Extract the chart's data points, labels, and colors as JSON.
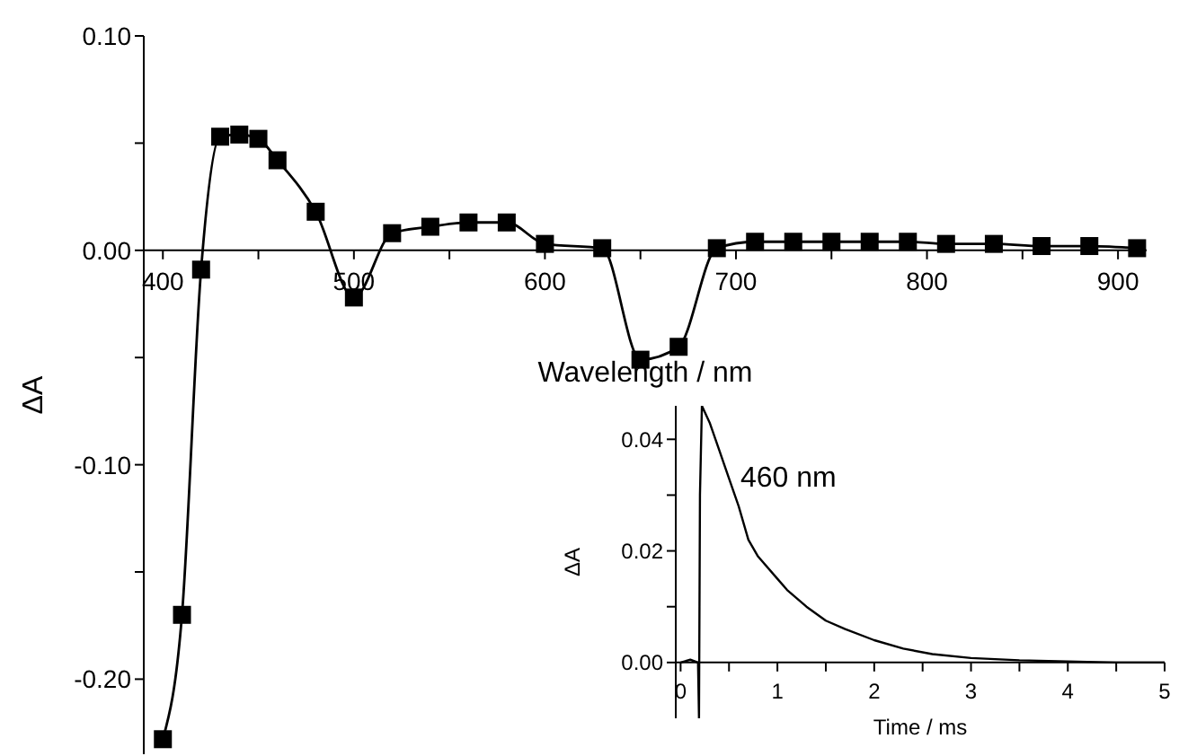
{
  "chart_data": [
    {
      "type": "line",
      "xlabel": "Wavelength / nm",
      "ylabel": "ΔA",
      "marker": "square",
      "color": "#000000",
      "x": [
        400,
        410,
        420,
        430,
        440,
        450,
        460,
        480,
        500,
        520,
        540,
        560,
        580,
        600,
        630,
        650,
        670,
        690,
        710,
        730,
        750,
        770,
        790,
        810,
        835,
        860,
        885,
        910
      ],
      "values": [
        -0.228,
        -0.17,
        -0.009,
        0.053,
        0.054,
        0.052,
        0.042,
        0.018,
        -0.022,
        0.008,
        0.011,
        0.013,
        0.013,
        0.003,
        0.001,
        -0.051,
        -0.045,
        0.001,
        0.004,
        0.004,
        0.004,
        0.004,
        0.004,
        0.003,
        0.003,
        0.002,
        0.002,
        0.001
      ],
      "xlim": [
        390,
        915
      ],
      "ylim": [
        -0.235,
        0.1
      ],
      "xticks": [
        400,
        {
          "value": 450,
          "label": null
        },
        500,
        {
          "value": 550,
          "label": null
        },
        600,
        {
          "value": 650,
          "label": null
        },
        700,
        {
          "value": 750,
          "label": null
        },
        800,
        {
          "value": 850,
          "label": null
        },
        900
      ],
      "yticks": [
        {
          "value": -0.2,
          "label": "-0.20"
        },
        {
          "value": -0.15,
          "label": null
        },
        {
          "value": -0.1,
          "label": "-0.10"
        },
        {
          "value": -0.05,
          "label": null
        },
        {
          "value": 0,
          "label": "0.00"
        },
        {
          "value": 0.05,
          "label": null
        },
        {
          "value": 0.1,
          "label": "0.10"
        }
      ]
    },
    {
      "type": "line",
      "xlabel": "Time / ms",
      "ylabel": "ΔA",
      "marker": "none",
      "color": "#000000",
      "annotations": [
        "460 nm"
      ],
      "x": [
        0,
        0.1,
        0.18,
        0.19,
        0.2,
        0.22,
        0.3,
        0.4,
        0.5,
        0.6,
        0.7,
        0.8,
        1.0,
        1.1,
        1.3,
        1.5,
        1.7,
        2.0,
        2.3,
        2.6,
        3.0,
        3.5,
        4.0,
        4.5,
        5.0
      ],
      "values": [
        0,
        0.0005,
        0,
        -0.01,
        0.03,
        0.046,
        0.043,
        0.038,
        0.033,
        0.028,
        0.022,
        0.019,
        0.015,
        0.013,
        0.01,
        0.0075,
        0.006,
        0.004,
        0.0025,
        0.0015,
        0.0008,
        0.0004,
        0.0002,
        0,
        0
      ],
      "xlim": [
        -0.05,
        5
      ],
      "ylim": [
        -0.01,
        0.046
      ],
      "xticks": [
        0,
        {
          "value": 0.5,
          "label": null
        },
        1,
        {
          "value": 1.5,
          "label": null
        },
        2,
        {
          "value": 2.5,
          "label": null
        },
        3,
        {
          "value": 3.5,
          "label": null
        },
        4,
        {
          "value": 4.5,
          "label": null
        },
        5
      ],
      "yticks": [
        {
          "value": 0,
          "label": "0.00"
        },
        {
          "value": 0.01,
          "label": null
        },
        {
          "value": 0.02,
          "label": "0.02"
        },
        {
          "value": 0.03,
          "label": null
        },
        {
          "value": 0.04,
          "label": "0.04"
        }
      ]
    }
  ]
}
